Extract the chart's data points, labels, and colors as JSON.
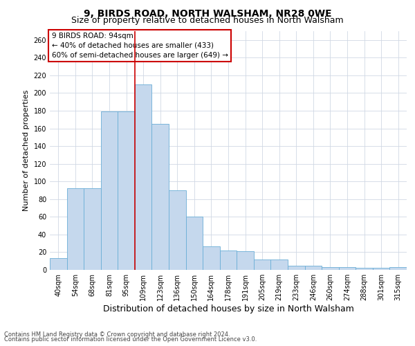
{
  "title": "9, BIRDS ROAD, NORTH WALSHAM, NR28 0WE",
  "subtitle": "Size of property relative to detached houses in North Walsham",
  "xlabel": "Distribution of detached houses by size in North Walsham",
  "ylabel": "Number of detached properties",
  "categories": [
    "40sqm",
    "54sqm",
    "68sqm",
    "81sqm",
    "95sqm",
    "109sqm",
    "123sqm",
    "136sqm",
    "150sqm",
    "164sqm",
    "178sqm",
    "191sqm",
    "205sqm",
    "219sqm",
    "233sqm",
    "246sqm",
    "260sqm",
    "274sqm",
    "288sqm",
    "301sqm",
    "315sqm"
  ],
  "values": [
    13,
    92,
    92,
    179,
    179,
    210,
    165,
    90,
    60,
    27,
    22,
    21,
    12,
    12,
    5,
    5,
    3,
    3,
    2,
    2,
    3
  ],
  "bar_color": "#c5d8ed",
  "bar_edge_color": "#6aaed6",
  "vline_x": 4.5,
  "vline_color": "#cc0000",
  "annotation_text": "9 BIRDS ROAD: 94sqm\n← 40% of detached houses are smaller (433)\n60% of semi-detached houses are larger (649) →",
  "annotation_box_color": "#ffffff",
  "annotation_box_edge": "#cc0000",
  "ylim": [
    0,
    270
  ],
  "yticks": [
    0,
    20,
    40,
    60,
    80,
    100,
    120,
    140,
    160,
    180,
    200,
    220,
    240,
    260
  ],
  "footer_line1": "Contains HM Land Registry data © Crown copyright and database right 2024.",
  "footer_line2": "Contains public sector information licensed under the Open Government Licence v3.0.",
  "background_color": "#ffffff",
  "grid_color": "#d0d8e4",
  "title_fontsize": 10,
  "subtitle_fontsize": 9,
  "tick_fontsize": 7,
  "ylabel_fontsize": 8,
  "xlabel_fontsize": 9,
  "annotation_fontsize": 7.5,
  "footer_fontsize": 6,
  "fig_width": 6.0,
  "fig_height": 5.0,
  "fig_dpi": 100
}
